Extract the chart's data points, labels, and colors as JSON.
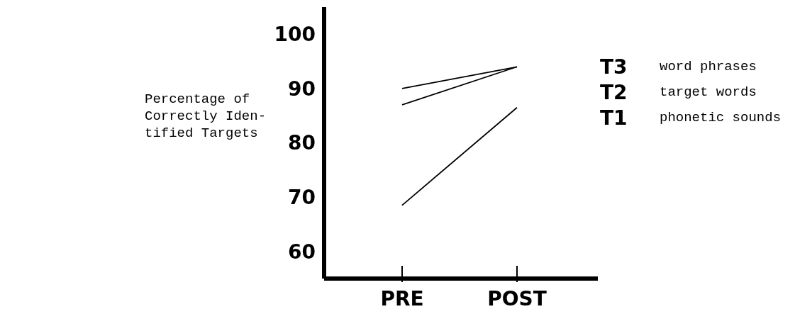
{
  "chart_data": {
    "type": "line",
    "ylabel": "Percentage of\nCorrectly Iden-\ntified Targets",
    "categories": [
      "PRE",
      "POST"
    ],
    "series": [
      {
        "name": "T3",
        "color": "#000000",
        "values": [
          90,
          94
        ]
      },
      {
        "name": "T2",
        "color": "#000000",
        "values": [
          87,
          94
        ]
      },
      {
        "name": "T1",
        "color": "#000000",
        "values": [
          68.5,
          86.5
        ]
      }
    ],
    "annotations": [
      "word phrases",
      "target words",
      "phonetic sounds"
    ],
    "ylim": [
      55,
      105
    ],
    "yticks": [
      60,
      70,
      80,
      90,
      100
    ],
    "grid": false,
    "legend": false,
    "marker": "none",
    "line_style": "solid"
  }
}
